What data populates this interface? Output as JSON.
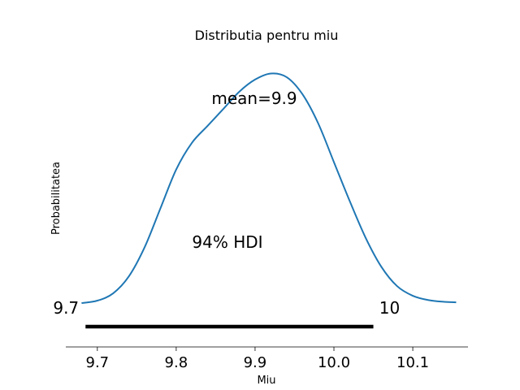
{
  "chart_data": {
    "type": "line",
    "title": "Distributia pentru miu",
    "xlabel": "Miu",
    "ylabel": "Probabilitatea",
    "xlim": [
      9.66,
      10.17
    ],
    "ylim": [
      0,
      1
    ],
    "x_ticks": [
      "9.7",
      "9.8",
      "9.9",
      "10.0",
      "10.1"
    ],
    "x_tick_values": [
      9.7,
      9.8,
      9.9,
      10.0,
      10.1
    ],
    "y_ticks_visible": false,
    "grid": false,
    "series": [
      {
        "color": "#1f77b4",
        "x": [
          9.68,
          9.7,
          9.72,
          9.74,
          9.76,
          9.78,
          9.8,
          9.82,
          9.84,
          9.86,
          9.88,
          9.9,
          9.92,
          9.94,
          9.96,
          9.98,
          10.0,
          10.02,
          10.04,
          10.06,
          10.08,
          10.1,
          10.12,
          10.14,
          10.155
        ],
        "y": [
          0.0,
          0.01,
          0.04,
          0.11,
          0.23,
          0.39,
          0.55,
          0.66,
          0.73,
          0.8,
          0.87,
          0.92,
          0.945,
          0.93,
          0.86,
          0.74,
          0.58,
          0.42,
          0.27,
          0.15,
          0.07,
          0.03,
          0.012,
          0.005,
          0.003
        ]
      }
    ],
    "annotations": {
      "mean_label": "mean=9.9",
      "hdi_label": "94% HDI",
      "hdi_low_label": "9.7",
      "hdi_high_label": "10",
      "hdi_range": [
        9.685,
        10.05
      ],
      "hdi_color": "#000000"
    }
  }
}
